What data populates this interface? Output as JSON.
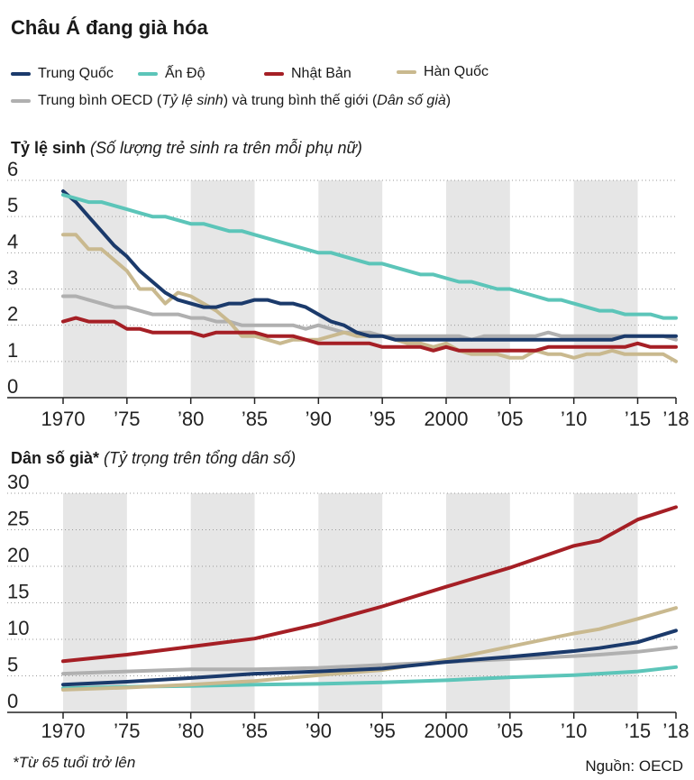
{
  "title": "Châu Á đang già hóa",
  "legend": {
    "china": "Trung Quốc",
    "india": "Ấn Độ",
    "japan": "Nhật Bản",
    "korea": "Hàn Quốc",
    "oecd_a": "Trung bình OECD (",
    "oecd_b": "Tỷ lệ sinh",
    "oecd_c": ") và trung bình thế giới (",
    "oecd_d": "Dân số già",
    "oecd_e": ")"
  },
  "colors": {
    "china": "#1b3a6b",
    "india": "#5cc5b9",
    "japan": "#a51f25",
    "korea": "#c9b98f",
    "oecd": "#b0b0b0",
    "band": "#e6e6e6"
  },
  "section1": {
    "bold": "Tỷ lệ sinh",
    "italic": "(Số lượng trẻ sinh ra trên mỗi phụ nữ)"
  },
  "section2": {
    "bold": "Dân số già*",
    "italic": "(Tỷ trọng trên tổng dân số)"
  },
  "footnote": "*Từ 65 tuổi trở lên",
  "source": "Nguồn: OECD",
  "chart_data": [
    {
      "type": "line",
      "title": "Tỷ lệ sinh (Số lượng trẻ sinh ra trên mỗi phụ nữ)",
      "xlabel": "",
      "ylabel": "",
      "xlim": [
        1970,
        2018
      ],
      "ylim": [
        0,
        6
      ],
      "yticks": [
        0,
        1,
        2,
        3,
        4,
        5,
        6
      ],
      "xtick_values": [
        1970,
        1975,
        1980,
        1985,
        1990,
        1995,
        2000,
        2005,
        2010,
        2015,
        2018
      ],
      "xtick_labels": [
        "1970",
        "’75",
        "’80",
        "’85",
        "’90",
        "’95",
        "2000",
        "’05",
        "’10",
        "’15",
        "’18"
      ],
      "shaded_periods": [
        [
          1970,
          1975
        ],
        [
          1980,
          1985
        ],
        [
          1990,
          1995
        ],
        [
          2000,
          2005
        ],
        [
          2010,
          2015
        ]
      ],
      "x": [
        1970,
        1971,
        1972,
        1973,
        1974,
        1975,
        1976,
        1977,
        1978,
        1979,
        1980,
        1981,
        1982,
        1983,
        1984,
        1985,
        1986,
        1987,
        1988,
        1989,
        1990,
        1991,
        1992,
        1993,
        1994,
        1995,
        1996,
        1997,
        1998,
        1999,
        2000,
        2001,
        2002,
        2003,
        2004,
        2005,
        2006,
        2007,
        2008,
        2009,
        2010,
        2011,
        2012,
        2013,
        2014,
        2015,
        2016,
        2017,
        2018
      ],
      "series": [
        {
          "key": "oecd",
          "name": "Trung bình OECD",
          "values": [
            2.8,
            2.8,
            2.7,
            2.6,
            2.5,
            2.5,
            2.4,
            2.3,
            2.3,
            2.3,
            2.2,
            2.2,
            2.1,
            2.1,
            2.0,
            2.0,
            2.0,
            2.0,
            2.0,
            1.9,
            2.0,
            1.9,
            1.8,
            1.8,
            1.8,
            1.7,
            1.7,
            1.7,
            1.7,
            1.7,
            1.7,
            1.7,
            1.6,
            1.7,
            1.7,
            1.7,
            1.7,
            1.7,
            1.8,
            1.7,
            1.7,
            1.7,
            1.7,
            1.7,
            1.7,
            1.7,
            1.7,
            1.7,
            1.6
          ]
        },
        {
          "key": "korea",
          "name": "Hàn Quốc",
          "values": [
            4.5,
            4.5,
            4.1,
            4.1,
            3.8,
            3.5,
            3.0,
            3.0,
            2.6,
            2.9,
            2.8,
            2.6,
            2.4,
            2.1,
            1.7,
            1.7,
            1.6,
            1.5,
            1.6,
            1.6,
            1.6,
            1.7,
            1.8,
            1.7,
            1.7,
            1.7,
            1.6,
            1.5,
            1.5,
            1.4,
            1.5,
            1.3,
            1.2,
            1.2,
            1.2,
            1.1,
            1.1,
            1.3,
            1.2,
            1.2,
            1.1,
            1.2,
            1.2,
            1.3,
            1.2,
            1.2,
            1.2,
            1.2,
            1.0
          ]
        },
        {
          "key": "japan",
          "name": "Nhật Bản",
          "values": [
            2.1,
            2.2,
            2.1,
            2.1,
            2.1,
            1.9,
            1.9,
            1.8,
            1.8,
            1.8,
            1.8,
            1.7,
            1.8,
            1.8,
            1.8,
            1.8,
            1.7,
            1.7,
            1.7,
            1.6,
            1.5,
            1.5,
            1.5,
            1.5,
            1.5,
            1.4,
            1.4,
            1.4,
            1.4,
            1.3,
            1.4,
            1.3,
            1.3,
            1.3,
            1.3,
            1.3,
            1.3,
            1.3,
            1.4,
            1.4,
            1.4,
            1.4,
            1.4,
            1.4,
            1.4,
            1.5,
            1.4,
            1.4,
            1.4
          ]
        },
        {
          "key": "china",
          "name": "Trung Quốc",
          "values": [
            5.7,
            5.4,
            5.0,
            4.6,
            4.2,
            3.9,
            3.5,
            3.2,
            2.9,
            2.7,
            2.6,
            2.5,
            2.5,
            2.6,
            2.6,
            2.7,
            2.7,
            2.6,
            2.6,
            2.5,
            2.3,
            2.1,
            2.0,
            1.8,
            1.7,
            1.7,
            1.6,
            1.6,
            1.6,
            1.6,
            1.6,
            1.6,
            1.6,
            1.6,
            1.6,
            1.6,
            1.6,
            1.6,
            1.6,
            1.6,
            1.6,
            1.6,
            1.6,
            1.6,
            1.7,
            1.7,
            1.7,
            1.7,
            1.7
          ]
        },
        {
          "key": "india",
          "name": "Ấn Độ",
          "values": [
            5.6,
            5.5,
            5.4,
            5.4,
            5.3,
            5.2,
            5.1,
            5.0,
            5.0,
            4.9,
            4.8,
            4.8,
            4.7,
            4.6,
            4.6,
            4.5,
            4.4,
            4.3,
            4.2,
            4.1,
            4.0,
            4.0,
            3.9,
            3.8,
            3.7,
            3.7,
            3.6,
            3.5,
            3.4,
            3.4,
            3.3,
            3.2,
            3.2,
            3.1,
            3.0,
            3.0,
            2.9,
            2.8,
            2.7,
            2.7,
            2.6,
            2.5,
            2.4,
            2.4,
            2.3,
            2.3,
            2.3,
            2.2,
            2.2
          ]
        }
      ]
    },
    {
      "type": "line",
      "title": "Dân số già* (Tỷ trọng trên tổng dân số)",
      "xlabel": "",
      "ylabel": "",
      "xlim": [
        1970,
        2018
      ],
      "ylim": [
        0,
        30
      ],
      "yticks": [
        0,
        5,
        10,
        15,
        20,
        25,
        30
      ],
      "xtick_values": [
        1970,
        1975,
        1980,
        1985,
        1990,
        1995,
        2000,
        2005,
        2010,
        2015,
        2018
      ],
      "xtick_labels": [
        "1970",
        "’75",
        "’80",
        "’85",
        "’90",
        "’95",
        "2000",
        "’05",
        "’10",
        "’15",
        "’18"
      ],
      "shaded_periods": [
        [
          1970,
          1975
        ],
        [
          1980,
          1985
        ],
        [
          1990,
          1995
        ],
        [
          2000,
          2005
        ],
        [
          2010,
          2015
        ]
      ],
      "x": [
        1970,
        1975,
        1980,
        1985,
        1990,
        1995,
        2000,
        2005,
        2010,
        2012,
        2015,
        2018
      ],
      "series": [
        {
          "key": "india",
          "name": "Ấn Độ",
          "values": [
            3.3,
            3.5,
            3.6,
            3.8,
            3.9,
            4.1,
            4.4,
            4.8,
            5.1,
            5.3,
            5.6,
            6.2
          ]
        },
        {
          "key": "korea",
          "name": "Hàn Quốc",
          "values": [
            3.1,
            3.4,
            3.8,
            4.3,
            5.1,
            5.8,
            7.2,
            9.0,
            10.8,
            11.4,
            12.8,
            14.3
          ]
        },
        {
          "key": "oecd",
          "name": "Trung bình thế giới",
          "values": [
            5.3,
            5.6,
            5.9,
            5.9,
            6.1,
            6.5,
            6.9,
            7.3,
            7.7,
            7.9,
            8.3,
            8.9
          ]
        },
        {
          "key": "china",
          "name": "Trung Quốc",
          "values": [
            3.8,
            4.2,
            4.7,
            5.3,
            5.6,
            6.0,
            6.9,
            7.6,
            8.4,
            8.8,
            9.6,
            11.2
          ]
        },
        {
          "key": "japan",
          "name": "Nhật Bản",
          "values": [
            7.0,
            7.9,
            9.0,
            10.1,
            12.1,
            14.5,
            17.2,
            19.8,
            22.8,
            23.5,
            26.4,
            28.1
          ]
        }
      ]
    }
  ]
}
